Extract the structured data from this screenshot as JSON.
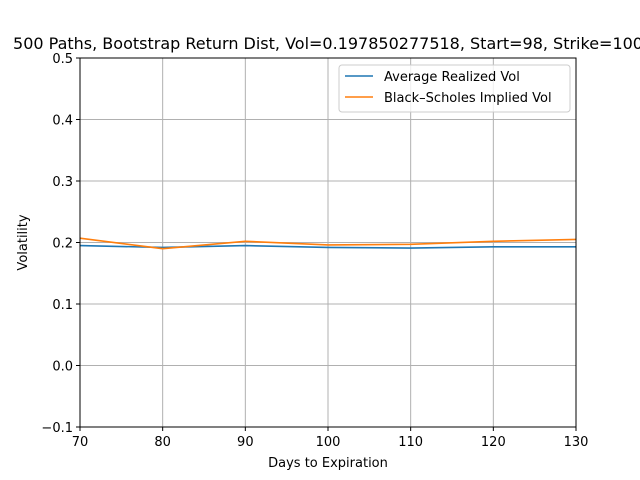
{
  "chart_data": {
    "type": "line",
    "title": "500 Paths, Bootstrap Return Dist, Vol=0.197850277518, Start=98, Strike=100",
    "xlabel": "Days to Expiration",
    "ylabel": "Volatility",
    "xlim": [
      70,
      130
    ],
    "ylim": [
      -0.1,
      0.5
    ],
    "xticks": [
      70,
      80,
      90,
      100,
      110,
      120,
      130
    ],
    "yticks": [
      -0.1,
      0.0,
      0.1,
      0.2,
      0.3,
      0.4,
      0.5
    ],
    "xtick_labels": [
      "70",
      "80",
      "90",
      "100",
      "110",
      "120",
      "130"
    ],
    "ytick_labels": [
      "−0.1",
      "0.0",
      "0.1",
      "0.2",
      "0.3",
      "0.4",
      "0.5"
    ],
    "grid": true,
    "legend_position": "upper right",
    "x": [
      70,
      80,
      90,
      100,
      110,
      120,
      130
    ],
    "series": [
      {
        "name": "Average Realized Vol",
        "color": "#1f77b4",
        "values": [
          0.195,
          0.192,
          0.195,
          0.192,
          0.191,
          0.193,
          0.193
        ]
      },
      {
        "name": "Black–Scholes Implied Vol",
        "color": "#ff7f0e",
        "values": [
          0.207,
          0.19,
          0.202,
          0.196,
          0.197,
          0.202,
          0.205
        ]
      }
    ]
  }
}
